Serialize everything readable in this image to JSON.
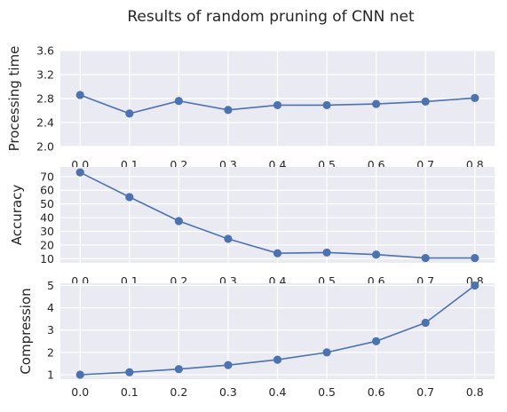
{
  "figure": {
    "title": "Results of random pruning of CNN net"
  },
  "chart_data": [
    {
      "type": "line",
      "ylabel": "Processing time",
      "x": [
        0.0,
        0.1,
        0.2,
        0.3,
        0.4,
        0.5,
        0.6,
        0.7,
        0.8
      ],
      "y": [
        2.86,
        2.55,
        2.76,
        2.61,
        2.69,
        2.69,
        2.71,
        2.75,
        2.81
      ],
      "xlim": [
        -0.04,
        0.84
      ],
      "ylim": [
        2.0,
        3.6
      ],
      "yticks": [
        "2.0",
        "2.4",
        "2.8",
        "3.2",
        "3.6"
      ],
      "xticks": [
        "0.0",
        "0.1",
        "0.2",
        "0.3",
        "0.4",
        "0.5",
        "0.6",
        "0.7",
        "0.8"
      ],
      "grid": true,
      "marker": "circle",
      "color": "#4c72b0"
    },
    {
      "type": "line",
      "ylabel": "Accuracy",
      "x": [
        0.0,
        0.1,
        0.2,
        0.3,
        0.4,
        0.5,
        0.6,
        0.7,
        0.8
      ],
      "y": [
        73,
        55,
        37.5,
        24.5,
        14,
        14.5,
        13,
        10.5,
        10.5
      ],
      "xlim": [
        -0.04,
        0.84
      ],
      "ylim": [
        7,
        77
      ],
      "yticks": [
        "10",
        "20",
        "30",
        "40",
        "50",
        "60",
        "70"
      ],
      "xticks": [
        "0.0",
        "0.1",
        "0.2",
        "0.3",
        "0.4",
        "0.5",
        "0.6",
        "0.7",
        "0.8"
      ],
      "grid": true,
      "marker": "circle",
      "color": "#4c72b0"
    },
    {
      "type": "line",
      "ylabel": "Compression",
      "x": [
        0.0,
        0.1,
        0.2,
        0.3,
        0.4,
        0.5,
        0.6,
        0.7,
        0.8
      ],
      "y": [
        1.0,
        1.11,
        1.25,
        1.43,
        1.67,
        2.0,
        2.5,
        3.33,
        5.0
      ],
      "xlim": [
        -0.04,
        0.84
      ],
      "ylim": [
        0.8,
        5.1
      ],
      "yticks": [
        "1",
        "2",
        "3",
        "4",
        "5"
      ],
      "xticks": [
        "0.0",
        "0.1",
        "0.2",
        "0.3",
        "0.4",
        "0.5",
        "0.6",
        "0.7",
        "0.8"
      ],
      "grid": true,
      "marker": "circle",
      "color": "#4c72b0"
    }
  ]
}
